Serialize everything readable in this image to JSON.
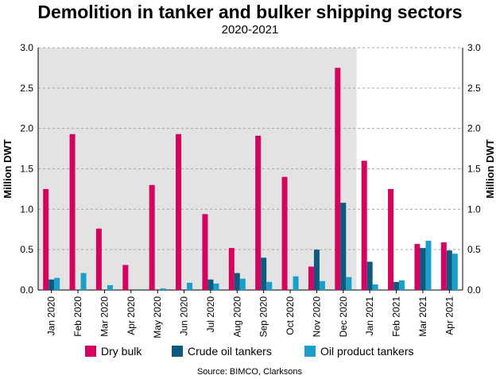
{
  "chart_data": {
    "type": "bar",
    "title": "Demolition in tanker and bulker shipping sectors",
    "subtitle": "2020-2021",
    "ylabel": "Million DWT",
    "ylabel_right": "Million DWT",
    "ylim": [
      0,
      3.0
    ],
    "yticks": [
      "0.0",
      "0.5",
      "1.0",
      "1.5",
      "2.0",
      "2.5",
      "3.0"
    ],
    "grid": "horizontal dashed",
    "shaded_period": "Jan 2020 - Dec 2020",
    "categories": [
      "Jan 2020",
      "Feb 2020",
      "Mar 2020",
      "Apr 2020",
      "May 2020",
      "Jun 2020",
      "Jul 2020",
      "Aug 2020",
      "Sep 2020",
      "Oct 2020",
      "Nov 2020",
      "Dec 2020",
      "Jan 2021",
      "Feb 2021",
      "Mar 2021",
      "Apr 2021"
    ],
    "series": [
      {
        "name": "Dry bulk",
        "color": "#D6005F",
        "values": [
          1.25,
          1.93,
          0.76,
          0.31,
          1.3,
          1.93,
          0.94,
          0.52,
          1.91,
          1.4,
          0.29,
          2.75,
          1.6,
          1.25,
          0.57,
          0.59
        ]
      },
      {
        "name": "Crude oil tankers",
        "color": "#0E5A7E",
        "values": [
          0.13,
          0.0,
          0.0,
          0.0,
          0.0,
          0.0,
          0.13,
          0.21,
          0.4,
          0.0,
          0.5,
          1.08,
          0.35,
          0.1,
          0.52,
          0.49
        ]
      },
      {
        "name": "Oil product tankers",
        "color": "#1A9FCB",
        "values": [
          0.15,
          0.21,
          0.06,
          0.0,
          0.02,
          0.09,
          0.08,
          0.14,
          0.1,
          0.17,
          0.11,
          0.16,
          0.07,
          0.12,
          0.61,
          0.45
        ]
      }
    ],
    "legend_position": "bottom",
    "source": "Source: BIMCO, Clarksons"
  }
}
